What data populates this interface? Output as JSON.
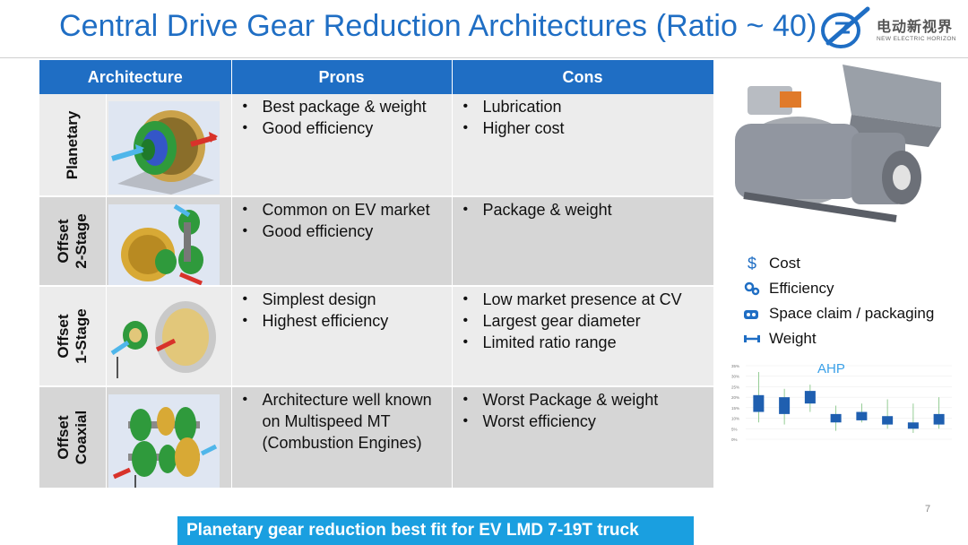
{
  "slide": {
    "title": "Central Drive Gear Reduction Architectures (Ratio ~ 40)",
    "page_number": "7",
    "conclusion": "Planetary gear reduction best fit for EV LMD 7-19T truck"
  },
  "logo": {
    "cn_text": "电动新视界",
    "en_text": "NEW ELECTRIC HORIZON"
  },
  "table": {
    "headers": {
      "architecture": "Architecture",
      "pros": "Prons",
      "cons": "Cons"
    },
    "rows": [
      {
        "label_line1": "Planetary",
        "label_line2": "",
        "pros": [
          "Best package & weight",
          "Good efficiency"
        ],
        "cons": [
          "Lubrication",
          "Higher cost"
        ]
      },
      {
        "label_line1": "Offset",
        "label_line2": "2-Stage",
        "pros": [
          "Common on EV market",
          "Good efficiency"
        ],
        "cons": [
          "Package & weight"
        ]
      },
      {
        "label_line1": "Offset",
        "label_line2": "1-Stage",
        "pros": [
          "Simplest design",
          "Highest efficiency"
        ],
        "cons": [
          "Low market presence at CV",
          "Largest gear diameter",
          "Limited ratio range"
        ]
      },
      {
        "label_line1": "Offset",
        "label_line2": "Coaxial",
        "pros": [
          "Architecture well known on Multispeed MT (Combustion Engines)"
        ],
        "cons": [
          "Worst Package & weight",
          "Worst efficiency"
        ]
      }
    ]
  },
  "legend": {
    "items": [
      {
        "icon": "dollar-icon",
        "label": "Cost"
      },
      {
        "icon": "gears-icon",
        "label": "Efficiency"
      },
      {
        "icon": "box-icon",
        "label": "Space claim / packaging"
      },
      {
        "icon": "weight-arrow-icon",
        "label": "Weight"
      }
    ]
  },
  "colors": {
    "accent": "#1f6ec4",
    "banner": "#1a9fe0",
    "row_light": "#ececec",
    "row_dark": "#d6d6d6"
  },
  "chart_data": {
    "type": "box",
    "title": "AHP",
    "yticks": [
      "35%",
      "30%",
      "25%",
      "20%",
      "15%",
      "10%",
      "5%",
      "0%"
    ],
    "ylim": [
      0,
      35
    ],
    "series": [
      {
        "low": 8,
        "q1": 13,
        "q3": 21,
        "high": 32
      },
      {
        "low": 7,
        "q1": 12,
        "q3": 20,
        "high": 24
      },
      {
        "low": 13,
        "q1": 17,
        "q3": 23,
        "high": 26
      },
      {
        "low": 4,
        "q1": 8,
        "q3": 12,
        "high": 16
      },
      {
        "low": 8,
        "q1": 9,
        "q3": 13,
        "high": 17
      },
      {
        "low": 5,
        "q1": 7,
        "q3": 11,
        "high": 19
      },
      {
        "low": 3,
        "q1": 5,
        "q3": 8,
        "high": 17
      },
      {
        "low": 5,
        "q1": 7,
        "q3": 12,
        "high": 20
      }
    ]
  }
}
